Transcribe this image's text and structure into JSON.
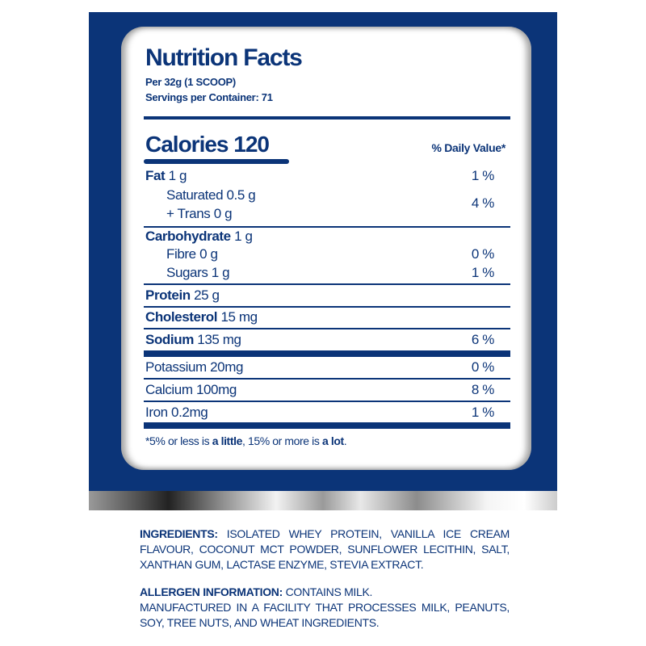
{
  "header": {
    "title": "Nutrition Facts",
    "serving_size": "Per 32g (1 SCOOP)",
    "servings_per_container": "Servings per Container: 71"
  },
  "calories": {
    "label": "Calories",
    "value": "120"
  },
  "daily_value_header": "% Daily Value*",
  "nutrients": [
    {
      "name": "Fat",
      "amount": "1 g",
      "pct": "1 %"
    },
    {
      "name": "Saturated",
      "amount": "0.5 g"
    },
    {
      "name": "+ Trans",
      "amount": "0 g",
      "pct_combined": "4 %"
    },
    {
      "name": "Carbohydrate",
      "amount": "1 g"
    },
    {
      "name": "Fibre",
      "amount": "0 g",
      "pct": "0 %"
    },
    {
      "name": "Sugars",
      "amount": "1 g",
      "pct": "1 %"
    },
    {
      "name": "Protein",
      "amount": "25 g"
    },
    {
      "name": "Cholesterol",
      "amount": "15 mg"
    },
    {
      "name": "Sodium",
      "amount": "135 mg",
      "pct": "6 %"
    },
    {
      "name": "Potassium",
      "amount": "20mg",
      "pct": "0 %"
    },
    {
      "name": "Calcium",
      "amount": "100mg",
      "pct": "8 %"
    },
    {
      "name": "Iron",
      "amount": "0.2mg",
      "pct": "1 %"
    }
  ],
  "footnote": {
    "part1": "*5% or less is ",
    "bold1": "a little",
    "part2": ", 15% or more is ",
    "bold2": "a lot",
    "part3": "."
  },
  "ingredients": {
    "label": "INGREDIENTS:",
    "text": "ISOLATED WHEY PROTEIN, VANILLA ICE CREAM FLAVOUR, COCONUT MCT POWDER, SUNFLOWER LECITHIN, SALT, XANTHAN GUM, LACTASE ENZYME, STEVIA EXTRACT."
  },
  "allergen": {
    "label": "ALLERGEN INFORMATION:",
    "text": "CONTAINS MILK.",
    "facility": "MANUFACTURED IN A FACILITY THAT PROCESSES MILK, PEANUTS, SOY, TREE NUTS, AND WHEAT INGREDIENTS."
  },
  "colors": {
    "brand_blue": "#0b3478",
    "card": "#ffffff"
  }
}
